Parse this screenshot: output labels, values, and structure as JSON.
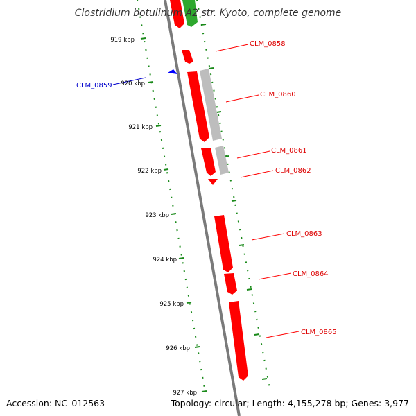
{
  "title": "Clostridium botulinum A2 str. Kyoto, complete genome",
  "accession": "Accession: NC_012563",
  "summary": "Topology: circular; Length: 4,155,278 bp; Genes: 3,977",
  "colors": {
    "backbone": "#7a7a7a",
    "ticks": "#1a8a1a",
    "gene_forward": "#ff0000",
    "gene_pseudo": "#bdbdbd",
    "gene_other": "#2ea82e",
    "label_red": "#dd0000",
    "label_blue": "#0000cc",
    "leader": "#ff0000"
  },
  "kbp_ticks": [
    "919 kbp",
    "920 kbp",
    "921 kbp",
    "922 kbp",
    "923 kbp",
    "924 kbp",
    "925 kbp",
    "926 kbp",
    "927 kbp"
  ],
  "gene_labels": [
    {
      "name": "CLM_0858",
      "color": "red"
    },
    {
      "name": "CLM_0859",
      "color": "blue"
    },
    {
      "name": "CLM_0860",
      "color": "red"
    },
    {
      "name": "CLM_0861",
      "color": "red"
    },
    {
      "name": "CLM_0862",
      "color": "red"
    },
    {
      "name": "CLM_0863",
      "color": "red"
    },
    {
      "name": "CLM_0864",
      "color": "red"
    },
    {
      "name": "CLM_0865",
      "color": "red"
    }
  ]
}
